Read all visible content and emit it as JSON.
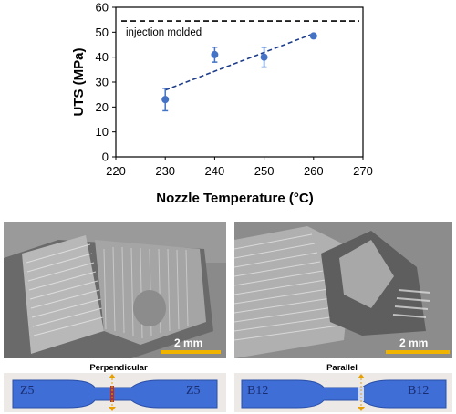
{
  "chart_data": {
    "type": "scatter",
    "title": "",
    "xlabel": "Nozzle Temperature (°C)",
    "ylabel": "UTS (MPa)",
    "xlim": [
      220,
      270
    ],
    "ylim": [
      0,
      60
    ],
    "xticks": [
      220,
      230,
      240,
      250,
      260,
      270
    ],
    "yticks": [
      0,
      10,
      20,
      30,
      40,
      50,
      60
    ],
    "grid": false,
    "series": [
      {
        "x": [
          230,
          240,
          250,
          260
        ],
        "y": [
          23,
          41,
          40,
          48.5
        ],
        "yerr": [
          4.5,
          3,
          4,
          0.5
        ],
        "color": "#4472c4",
        "trendline": "linear-dashed"
      }
    ],
    "reference_line": {
      "y": 54.5,
      "label": "injection molded",
      "style": "dashed",
      "color": "#000000"
    }
  },
  "images": {
    "left": {
      "scale_label": "2 mm",
      "orientation_label": "Perpendicular",
      "specimen_marks": [
        "Z5",
        "Z5"
      ]
    },
    "right": {
      "scale_label": "2 mm",
      "orientation_label": "Parallel",
      "specimen_marks": [
        "B12",
        "B12"
      ]
    }
  },
  "colors": {
    "marker": "#4472c4",
    "scale_bar": "#f0b400",
    "specimen": "#3f6fd6",
    "arrow": "#e8a000"
  }
}
